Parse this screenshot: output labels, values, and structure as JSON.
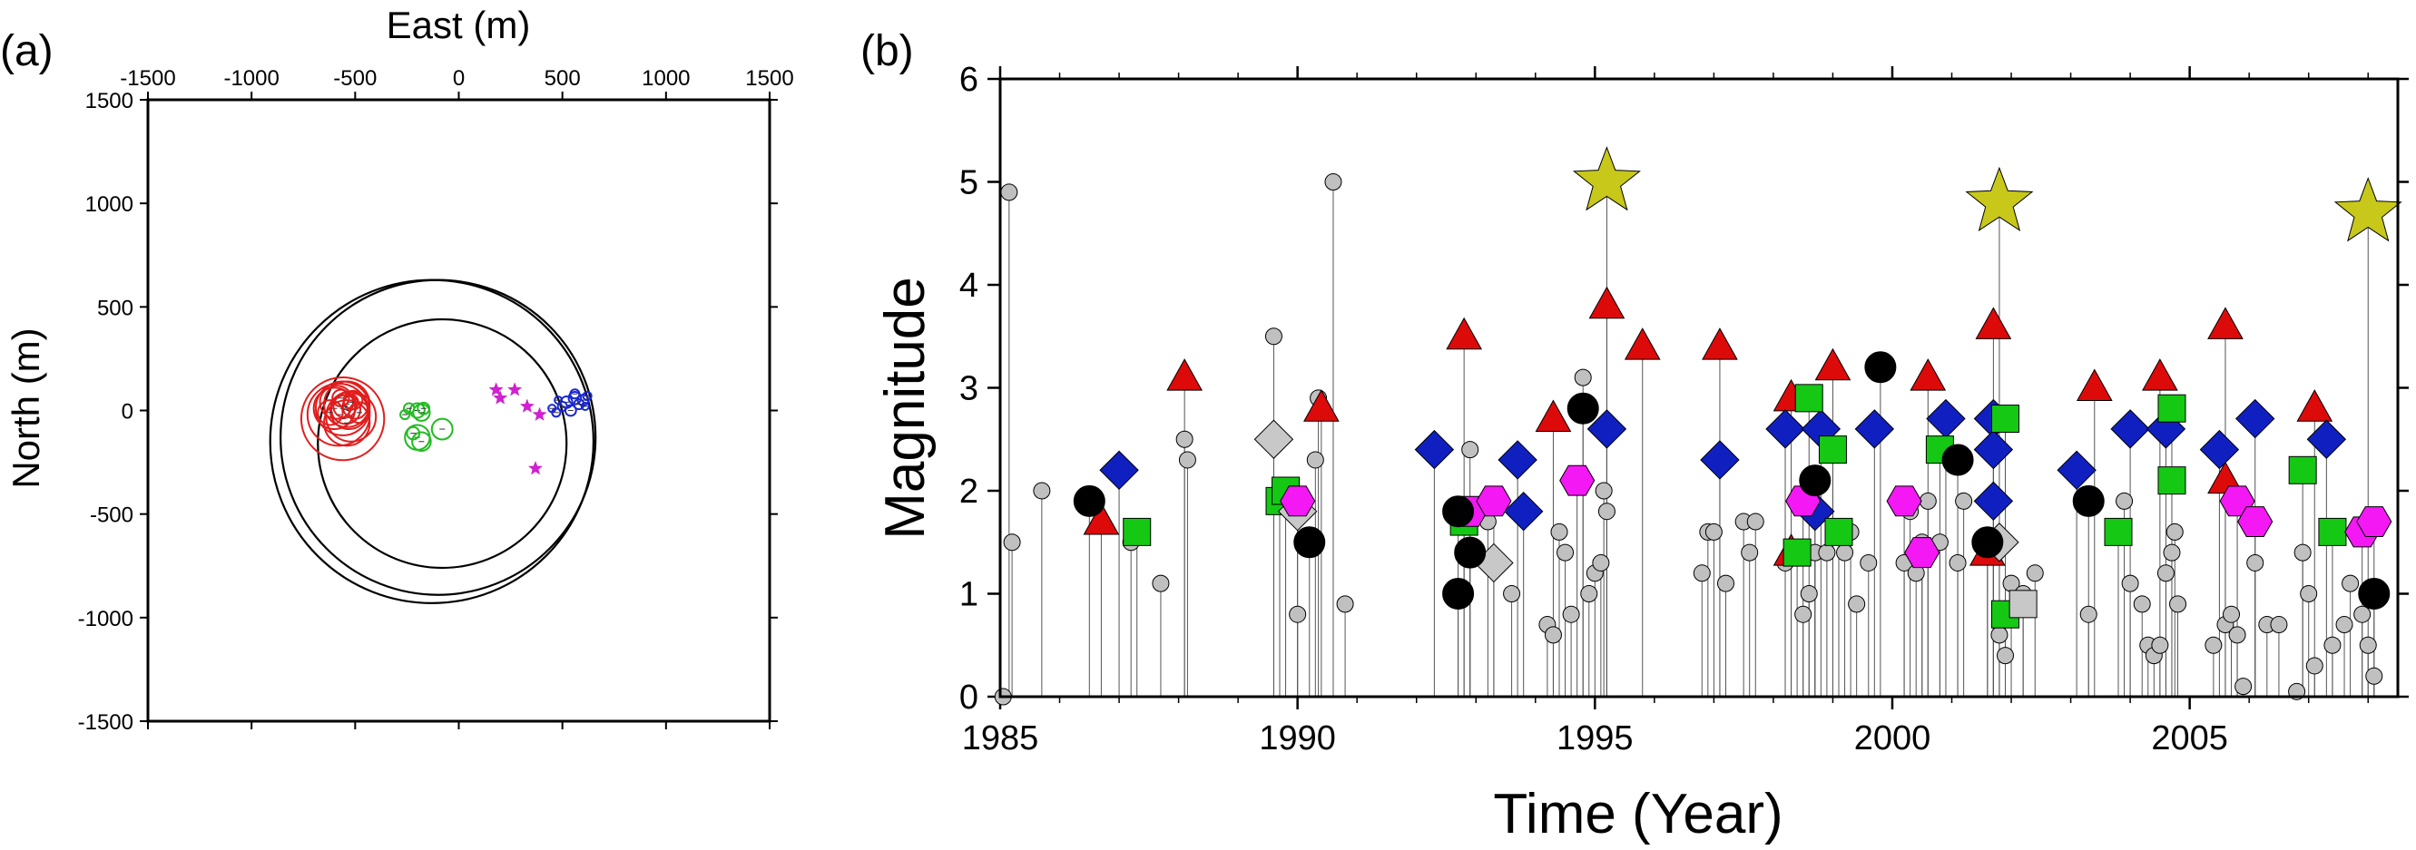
{
  "chart_data": [
    {
      "panel_label": "(a)",
      "type": "scatter",
      "xlabel": "East (m)",
      "ylabel": "North (m)",
      "xlim": [
        -1500,
        1500
      ],
      "ylim": [
        -1500,
        1500
      ],
      "x_ticks": [
        "-1500",
        "-1000",
        "-500",
        "0",
        "500",
        "1000",
        "1500"
      ],
      "y_ticks": [
        "1500",
        "1000",
        "500",
        "0",
        "-500",
        "-1000",
        "-1500"
      ],
      "rings": [
        {
          "cx": -130,
          "cy": -150,
          "r": 780
        },
        {
          "cx": -100,
          "cy": -130,
          "r": 760
        },
        {
          "cx": -80,
          "cy": -160,
          "r": 600
        }
      ],
      "clusters": [
        {
          "color": "#e11d1d",
          "marker": "circle",
          "points": [
            [
              -560,
              10,
              130
            ],
            [
              -540,
              30,
              110
            ],
            [
              -530,
              0,
              90
            ],
            [
              -580,
              -20,
              150
            ],
            [
              -520,
              -30,
              120
            ],
            [
              -590,
              40,
              80
            ],
            [
              -500,
              20,
              60
            ],
            [
              -560,
              -40,
              200
            ],
            [
              -545,
              5,
              70
            ],
            [
              -600,
              10,
              100
            ],
            [
              -480,
              -10,
              50
            ],
            [
              -570,
              60,
              40
            ],
            [
              -510,
              50,
              45
            ],
            [
              -620,
              -10,
              60
            ],
            [
              -540,
              -60,
              110
            ],
            [
              -520,
              40,
              35
            ],
            [
              -550,
              20,
              55
            ]
          ]
        },
        {
          "color": "#22bb22",
          "marker": "circle",
          "points": [
            [
              -200,
              -130,
              60
            ],
            [
              -180,
              -150,
              45
            ],
            [
              -220,
              -110,
              30
            ],
            [
              -200,
              0,
              35
            ],
            [
              -240,
              10,
              25
            ],
            [
              -180,
              -10,
              40
            ],
            [
              -170,
              10,
              28
            ],
            [
              -80,
              -90,
              50
            ],
            [
              -260,
              -20,
              22
            ]
          ]
        },
        {
          "color": "#d020d0",
          "marker": "star",
          "points": [
            [
              180,
              100,
              12
            ],
            [
              270,
              100,
              12
            ],
            [
              330,
              20,
              12
            ],
            [
              390,
              -20,
              12
            ],
            [
              370,
              -280,
              12
            ],
            [
              200,
              60,
              10
            ]
          ]
        },
        {
          "color": "#1a28d0",
          "marker": "circle",
          "points": [
            [
              520,
              40,
              28
            ],
            [
              560,
              60,
              30
            ],
            [
              600,
              50,
              26
            ],
            [
              580,
              30,
              24
            ],
            [
              500,
              20,
              22
            ],
            [
              540,
              0,
              26
            ],
            [
              620,
              70,
              20
            ],
            [
              450,
              10,
              18
            ],
            [
              470,
              -10,
              20
            ],
            [
              560,
              80,
              22
            ],
            [
              610,
              20,
              18
            ],
            [
              480,
              50,
              16
            ]
          ]
        }
      ]
    },
    {
      "panel_label": "(b)",
      "type": "scatter",
      "xlabel": "Time (Year)",
      "ylabel": "Magnitude",
      "xlim": [
        1985,
        2008.5
      ],
      "ylim": [
        0,
        6
      ],
      "x_ticks": [
        "1985",
        "1990",
        "1995",
        "2000",
        "2005"
      ],
      "y_ticks": [
        "0",
        "1",
        "2",
        "3",
        "4",
        "5",
        "6"
      ],
      "series": [
        {
          "marker": "circle",
          "color": "#c0c0c0",
          "points": [
            [
              1985.05,
              0
            ],
            [
              1985.15,
              4.9
            ],
            [
              1985.2,
              1.5
            ],
            [
              1985.7,
              2.0
            ],
            [
              1987.2,
              1.5
            ],
            [
              1987.7,
              1.1
            ],
            [
              1988.1,
              2.5
            ],
            [
              1988.15,
              2.3
            ],
            [
              1989.6,
              3.5
            ],
            [
              1990.0,
              0.8
            ],
            [
              1990.3,
              2.3
            ],
            [
              1990.35,
              2.9
            ],
            [
              1990.6,
              5.0
            ],
            [
              1990.8,
              0.9
            ],
            [
              1992.9,
              2.4
            ],
            [
              1993.2,
              1.7
            ],
            [
              1993.6,
              1.0
            ],
            [
              1994.2,
              0.7
            ],
            [
              1994.3,
              0.6
            ],
            [
              1994.4,
              1.6
            ],
            [
              1994.5,
              1.4
            ],
            [
              1994.6,
              0.8
            ],
            [
              1994.8,
              3.1
            ],
            [
              1994.9,
              1.0
            ],
            [
              1995.0,
              1.2
            ],
            [
              1995.1,
              1.3
            ],
            [
              1995.15,
              2.0
            ],
            [
              1995.2,
              1.8
            ],
            [
              1996.8,
              1.2
            ],
            [
              1996.9,
              1.6
            ],
            [
              1997.0,
              1.6
            ],
            [
              1997.2,
              1.1
            ],
            [
              1997.5,
              1.7
            ],
            [
              1997.6,
              1.4
            ],
            [
              1997.7,
              1.7
            ],
            [
              1998.2,
              1.3
            ],
            [
              1998.5,
              0.8
            ],
            [
              1998.6,
              1.0
            ],
            [
              1998.7,
              1.4
            ],
            [
              1998.9,
              1.4
            ],
            [
              1999.2,
              1.4
            ],
            [
              1999.3,
              1.6
            ],
            [
              1999.4,
              0.9
            ],
            [
              1999.6,
              1.3
            ],
            [
              2000.2,
              1.3
            ],
            [
              2000.3,
              1.8
            ],
            [
              2000.4,
              1.2
            ],
            [
              2000.5,
              1.5
            ],
            [
              2000.6,
              1.9
            ],
            [
              2000.8,
              1.5
            ],
            [
              2001.1,
              1.3
            ],
            [
              2001.2,
              1.9
            ],
            [
              2001.8,
              0.6
            ],
            [
              2001.9,
              0.4
            ],
            [
              2002.0,
              1.1
            ],
            [
              2002.2,
              1.0
            ],
            [
              2002.4,
              1.2
            ],
            [
              2003.3,
              0.8
            ],
            [
              2003.9,
              1.9
            ],
            [
              2004.0,
              1.1
            ],
            [
              2004.2,
              0.9
            ],
            [
              2004.3,
              0.5
            ],
            [
              2004.4,
              0.4
            ],
            [
              2004.5,
              0.5
            ],
            [
              2004.6,
              1.2
            ],
            [
              2004.7,
              1.4
            ],
            [
              2004.75,
              1.6
            ],
            [
              2004.8,
              0.9
            ],
            [
              2005.4,
              0.5
            ],
            [
              2005.6,
              0.7
            ],
            [
              2005.7,
              0.8
            ],
            [
              2005.8,
              0.6
            ],
            [
              2005.9,
              0.1
            ],
            [
              2006.1,
              1.3
            ],
            [
              2006.3,
              0.7
            ],
            [
              2006.5,
              0.7
            ],
            [
              2006.8,
              0.05
            ],
            [
              2006.9,
              1.4
            ],
            [
              2007.0,
              1.0
            ],
            [
              2007.1,
              0.3
            ],
            [
              2007.4,
              0.5
            ],
            [
              2007.6,
              0.7
            ],
            [
              2007.7,
              1.1
            ],
            [
              2007.9,
              0.8
            ],
            [
              2008.0,
              0.5
            ],
            [
              2008.1,
              0.2
            ]
          ]
        },
        {
          "marker": "star",
          "color": "#c8c81a",
          "points": [
            [
              1995.2,
              5.0
            ],
            [
              2001.8,
              4.8
            ],
            [
              2008.0,
              4.7
            ]
          ]
        },
        {
          "marker": "triangle",
          "color": "#dd0a0a",
          "points": [
            [
              1986.7,
              1.7
            ],
            [
              1988.1,
              3.1
            ],
            [
              1990.4,
              2.8
            ],
            [
              1992.8,
              3.5
            ],
            [
              1994.3,
              2.7
            ],
            [
              1995.2,
              3.8
            ],
            [
              1995.8,
              3.4
            ],
            [
              1997.1,
              3.4
            ],
            [
              1998.3,
              2.9
            ],
            [
              1998.3,
              1.4
            ],
            [
              1999.0,
              3.2
            ],
            [
              2000.6,
              3.1
            ],
            [
              2001.7,
              3.6
            ],
            [
              2001.6,
              1.4
            ],
            [
              2003.4,
              3.0
            ],
            [
              2004.5,
              3.1
            ],
            [
              2005.6,
              3.6
            ],
            [
              2005.6,
              2.1
            ],
            [
              2007.1,
              2.8
            ]
          ]
        },
        {
          "marker": "diamond",
          "color": "#1020c0",
          "points": [
            [
              1987.0,
              2.2
            ],
            [
              1992.3,
              2.4
            ],
            [
              1993.7,
              2.3
            ],
            [
              1993.8,
              1.8
            ],
            [
              1995.2,
              2.6
            ],
            [
              1997.1,
              2.3
            ],
            [
              1998.2,
              2.6
            ],
            [
              1998.7,
              1.8
            ],
            [
              1998.8,
              2.6
            ],
            [
              1999.7,
              2.6
            ],
            [
              2000.9,
              2.7
            ],
            [
              2001.7,
              2.7
            ],
            [
              2001.7,
              2.4
            ],
            [
              2001.7,
              1.9
            ],
            [
              2003.1,
              2.2
            ],
            [
              2004.0,
              2.6
            ],
            [
              2004.6,
              2.6
            ],
            [
              2005.5,
              2.4
            ],
            [
              2006.1,
              2.7
            ],
            [
              2007.3,
              2.5
            ]
          ]
        },
        {
          "marker": "square",
          "color": "#14c814",
          "points": [
            [
              1987.3,
              1.6
            ],
            [
              1989.7,
              1.9
            ],
            [
              1989.8,
              2.0
            ],
            [
              1992.8,
              1.7
            ],
            [
              1998.4,
              1.4
            ],
            [
              1998.6,
              2.9
            ],
            [
              1999.0,
              2.4
            ],
            [
              1999.1,
              1.6
            ],
            [
              2000.8,
              2.4
            ],
            [
              2001.9,
              2.7
            ],
            [
              2001.9,
              0.8
            ],
            [
              2003.8,
              1.6
            ],
            [
              2004.7,
              2.8
            ],
            [
              2004.7,
              2.1
            ],
            [
              2006.9,
              2.2
            ],
            [
              2007.4,
              1.6
            ]
          ]
        },
        {
          "marker": "diamond",
          "color": "#c8c8c8",
          "points": [
            [
              1989.6,
              2.5
            ],
            [
              1990.0,
              1.8
            ],
            [
              1993.3,
              1.3
            ],
            [
              2001.8,
              1.5
            ]
          ]
        },
        {
          "marker": "square",
          "color": "#c8c8c8",
          "points": [
            [
              2002.2,
              0.9
            ]
          ]
        },
        {
          "marker": "hexagon",
          "color": "#f418f4",
          "points": [
            [
              1990.0,
              1.9
            ],
            [
              1992.9,
              1.8
            ],
            [
              1993.3,
              1.9
            ],
            [
              1994.7,
              2.1
            ],
            [
              1998.5,
              1.9
            ],
            [
              2000.2,
              1.9
            ],
            [
              2000.5,
              1.4
            ],
            [
              2005.8,
              1.9
            ],
            [
              2006.1,
              1.7
            ],
            [
              2007.9,
              1.6
            ],
            [
              2008.1,
              1.7
            ]
          ]
        },
        {
          "marker": "circle",
          "color": "#000000",
          "points": [
            [
              1986.5,
              1.9
            ],
            [
              1990.2,
              1.5
            ],
            [
              1992.7,
              1.8
            ],
            [
              1992.9,
              1.4
            ],
            [
              1992.7,
              1.0
            ],
            [
              1994.8,
              2.8
            ],
            [
              1998.7,
              2.1
            ],
            [
              1999.8,
              3.2
            ],
            [
              2001.1,
              2.3
            ],
            [
              2001.6,
              1.5
            ],
            [
              2003.3,
              1.9
            ],
            [
              2008.1,
              1.0
            ]
          ]
        }
      ]
    }
  ]
}
